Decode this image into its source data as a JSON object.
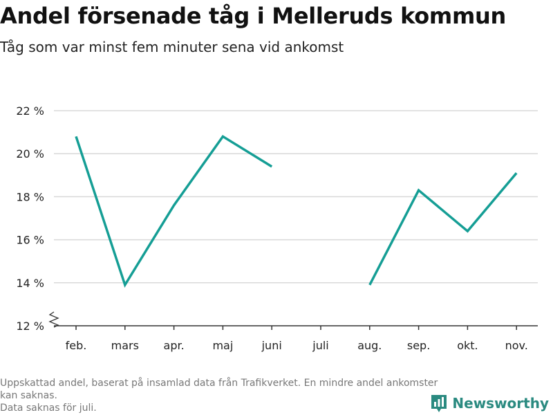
{
  "title": "Andel försenade tåg i Melleruds kommun",
  "subtitle": "Tåg som var minst fem minuter sena vid ankomst",
  "footnote": [
    "Uppskattad andel, baserat på insamlad data från Trafikverket. En mindre andel ankomster kan saknas.",
    "Data saknas för juli."
  ],
  "brand": {
    "name": "Newsworthy",
    "icon": "bar-chart-logo-icon"
  },
  "colors": {
    "line": "#159e95",
    "grid": "#d9d9d9",
    "axis": "#333333",
    "text": "#222222",
    "brand": "#2a8a80"
  },
  "chart_data": {
    "type": "line",
    "categories": [
      "feb.",
      "mars",
      "apr.",
      "maj",
      "juni",
      "juli",
      "aug.",
      "sep.",
      "okt.",
      "nov."
    ],
    "series": [
      {
        "values": [
          20.8,
          13.9,
          17.6,
          20.8,
          19.4,
          null,
          13.9,
          18.3,
          16.4,
          19.1
        ]
      }
    ],
    "yticks": [
      12,
      14,
      16,
      18,
      20,
      22
    ],
    "ytick_labels": [
      "12 %",
      "14 %",
      "16 %",
      "18 %",
      "20 %",
      "22 %"
    ],
    "ylim": [
      12,
      22
    ],
    "axis_break": true,
    "grid": true,
    "legend": "none"
  }
}
